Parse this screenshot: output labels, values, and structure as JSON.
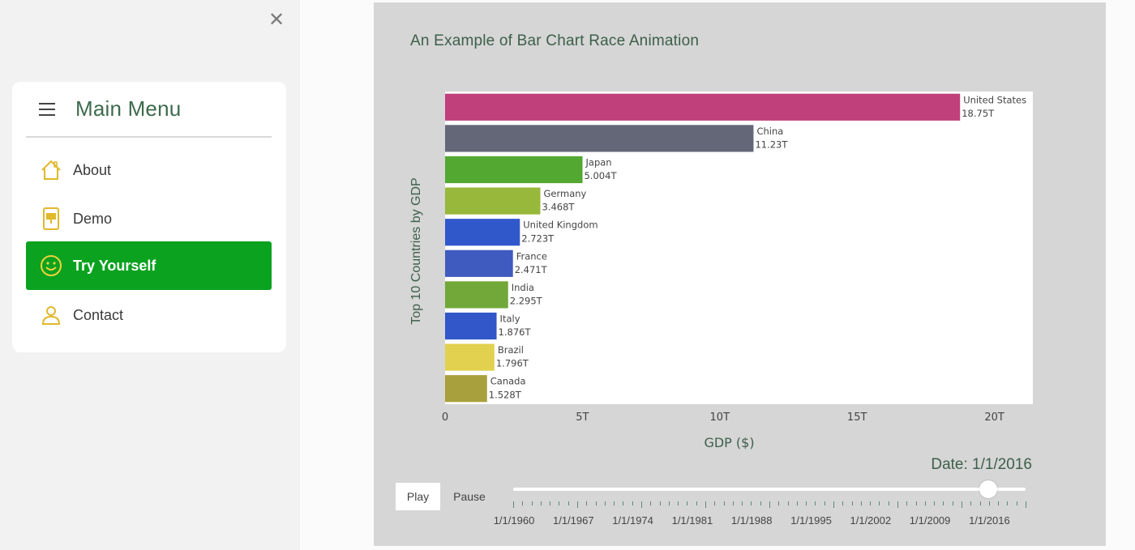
{
  "sidebar": {
    "close_icon": "close-icon",
    "title": "Main Menu",
    "items": [
      {
        "label": "About",
        "icon": "house-icon"
      },
      {
        "label": "Demo",
        "icon": "presentation-icon"
      },
      {
        "label": "Try Yourself",
        "icon": "smiley-icon",
        "active": true
      },
      {
        "label": "Contact",
        "icon": "person-icon"
      }
    ],
    "accent_color": "#0aa21f"
  },
  "controls": {
    "play_label": "Play",
    "pause_label": "Pause",
    "date_label": "Date: 1/1/2016",
    "slider_ticks": [
      "1/1/1960",
      "1/1/1967",
      "1/1/1974",
      "1/1/1981",
      "1/1/1988",
      "1/1/1995",
      "1/1/2002",
      "1/1/2009",
      "1/1/2016"
    ]
  },
  "chart_data": {
    "type": "bar",
    "orientation": "horizontal",
    "title": "An Example of Bar Chart Race Animation",
    "xlabel": "GDP ($)",
    "ylabel": "Top 10 Countries by GDP",
    "xlim": [
      0,
      21.4
    ],
    "xticks": [
      0,
      5,
      10,
      15,
      20
    ],
    "xtick_labels": [
      "0",
      "5T",
      "10T",
      "15T",
      "20T"
    ],
    "grid": false,
    "bars": [
      {
        "category": "United States",
        "value": 18.75,
        "label": "18.75T",
        "color": "#c0407b"
      },
      {
        "category": "China",
        "value": 11.23,
        "label": "11.23T",
        "color": "#646777"
      },
      {
        "category": "Japan",
        "value": 5.004,
        "label": "5.004T",
        "color": "#52a830"
      },
      {
        "category": "Germany",
        "value": 3.468,
        "label": "3.468T",
        "color": "#97b83a"
      },
      {
        "category": "United Kingdom",
        "value": 2.723,
        "label": "2.723T",
        "color": "#3158cb"
      },
      {
        "category": "France",
        "value": 2.471,
        "label": "2.471T",
        "color": "#3f5bbf"
      },
      {
        "category": "India",
        "value": 2.295,
        "label": "2.295T",
        "color": "#72a839"
      },
      {
        "category": "Italy",
        "value": 1.876,
        "label": "1.876T",
        "color": "#3157c8"
      },
      {
        "category": "Brazil",
        "value": 1.796,
        "label": "1.796T",
        "color": "#e2d14f"
      },
      {
        "category": "Canada",
        "value": 1.528,
        "label": "1.528T",
        "color": "#a8a03c"
      }
    ]
  }
}
